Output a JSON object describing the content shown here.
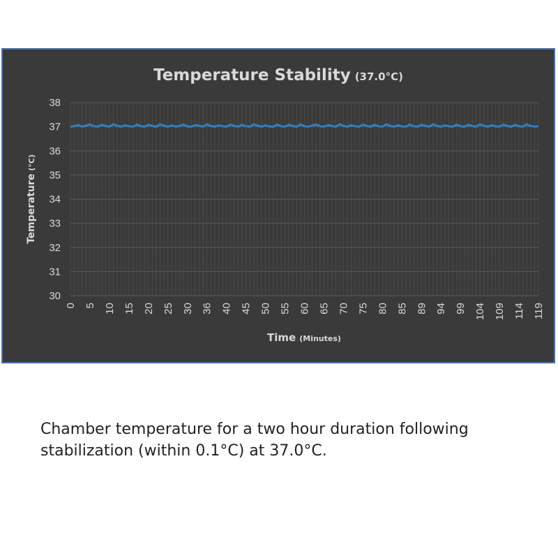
{
  "chart_data": {
    "type": "line",
    "title": "Temperature Stability",
    "title_suffix": "(37.0°C)",
    "xlabel": "Time",
    "xlabel_suffix": "(Minutes)",
    "ylabel": "Temperature",
    "ylabel_suffix": "(°C)",
    "ylim": [
      30,
      38
    ],
    "yticks": [
      "30",
      "31",
      "32",
      "33",
      "34",
      "35",
      "36",
      "37",
      "38"
    ],
    "xticks": [
      "0",
      "5",
      "10",
      "15",
      "20",
      "25",
      "30",
      "36",
      "40",
      "45",
      "50",
      "55",
      "60",
      "65",
      "70",
      "75",
      "80",
      "85",
      "89",
      "94",
      "99",
      "104",
      "109",
      "114",
      "119"
    ],
    "grid": true,
    "colors": {
      "background": "#3a3a3a",
      "line": "#2f7fc1",
      "grid": "#4a4a4a",
      "text": "#d9d9d9",
      "frame_border": "#4f6ea8"
    },
    "series": [
      {
        "x": [
          0,
          1,
          2,
          3,
          4,
          5,
          6,
          7,
          8,
          9,
          10,
          11,
          12,
          13,
          14,
          15,
          16,
          17,
          18,
          19,
          20,
          21,
          22,
          23,
          24,
          25,
          26,
          27,
          28,
          29,
          30,
          31,
          32,
          33,
          34,
          35,
          36,
          37,
          38,
          39,
          40,
          41,
          42,
          43,
          44,
          45,
          46,
          47,
          48,
          49,
          50,
          51,
          52,
          53,
          54,
          55,
          56,
          57,
          58,
          59,
          60,
          61,
          62,
          63,
          64,
          65,
          66,
          67,
          68,
          69,
          70,
          71,
          72,
          73,
          74,
          75,
          76,
          77,
          78,
          79,
          80,
          81,
          82,
          83,
          84,
          85,
          86,
          87,
          88,
          89,
          90,
          91,
          92,
          93,
          94,
          95,
          96,
          97,
          98,
          99,
          100,
          101,
          102,
          103,
          104,
          105,
          106,
          107,
          108,
          109,
          110,
          111,
          112,
          113,
          114,
          115,
          116,
          117,
          118,
          119,
          120
        ],
        "values": [
          37.0,
          37.02,
          37.07,
          37.0,
          37.04,
          37.1,
          37.02,
          37.0,
          37.08,
          37.03,
          37.0,
          37.1,
          37.04,
          37.0,
          37.06,
          37.02,
          37.0,
          37.09,
          37.02,
          37.0,
          37.08,
          37.03,
          37.0,
          37.1,
          37.04,
          37.0,
          37.05,
          37.0,
          37.03,
          37.09,
          37.01,
          37.0,
          37.07,
          37.04,
          37.0,
          37.1,
          37.03,
          37.0,
          37.06,
          37.02,
          37.0,
          37.09,
          37.03,
          37.0,
          37.08,
          37.02,
          37.0,
          37.1,
          37.04,
          37.0,
          37.06,
          37.01,
          37.0,
          37.09,
          37.02,
          37.0,
          37.08,
          37.03,
          37.0,
          37.1,
          37.02,
          37.0,
          37.05,
          37.09,
          37.02,
          37.0,
          37.07,
          37.03,
          37.0,
          37.1,
          37.04,
          37.0,
          37.06,
          37.02,
          37.0,
          37.09,
          37.03,
          37.0,
          37.08,
          37.02,
          37.0,
          37.1,
          37.03,
          37.0,
          37.06,
          37.01,
          37.0,
          37.09,
          37.02,
          37.0,
          37.08,
          37.04,
          37.0,
          37.1,
          37.03,
          37.0,
          37.06,
          37.02,
          37.0,
          37.09,
          37.02,
          37.0,
          37.08,
          37.03,
          37.0,
          37.1,
          37.04,
          37.0,
          37.06,
          37.02,
          37.0,
          37.09,
          37.03,
          37.0,
          37.08,
          37.02,
          37.0,
          37.1,
          37.03,
          37.0,
          37.02
        ]
      }
    ]
  },
  "caption": "Chamber temperature for a two hour duration following stabilization (within 0.1°C) at 37.0°C."
}
